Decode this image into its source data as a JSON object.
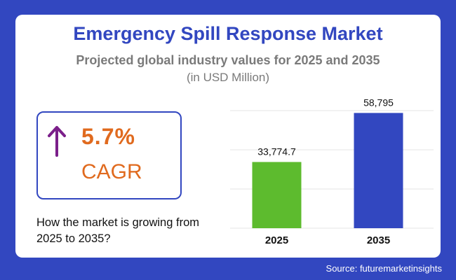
{
  "header": {
    "title": "Emergency Spill Response Market",
    "subtitle": "Projected global industry values for 2025 and 2035",
    "unit": "(in USD Million)"
  },
  "cagr": {
    "value": "5.7%",
    "label": "CAGR",
    "icon": "up-arrow-icon",
    "color": "#e06a1e",
    "arrow_color": "#7b1f8a"
  },
  "question": "How the market is growing from 2025 to 2035?",
  "source": "Source: futuremarketinsights",
  "colors": {
    "background": "#3247c0",
    "title": "#3247c0",
    "bar_2025": "#5dbb2e",
    "bar_2035": "#3247c0"
  },
  "chart_data": {
    "type": "bar",
    "categories": [
      "2025",
      "2035"
    ],
    "values": [
      33774.7,
      58795
    ],
    "value_labels": [
      "33,774.7",
      "58,795"
    ],
    "colors": [
      "#5dbb2e",
      "#3247c0"
    ],
    "ylim": [
      0,
      70000
    ],
    "grid": true
  }
}
